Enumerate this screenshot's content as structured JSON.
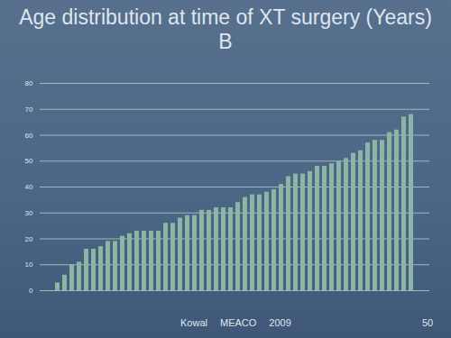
{
  "chart_data": {
    "type": "bar",
    "title": "Age distribution at time of XT surgery (Years)",
    "subtitle": "B",
    "categories": [
      null,
      null,
      null,
      null,
      null,
      null,
      null,
      null,
      null,
      null,
      null,
      null,
      null,
      null,
      null,
      null,
      null,
      null,
      null,
      null,
      null,
      null,
      null,
      null,
      null,
      null,
      null,
      null,
      null,
      null,
      null,
      null,
      null,
      null,
      null,
      null,
      null,
      null,
      null,
      null,
      null,
      null,
      null,
      null,
      null,
      null,
      null,
      null,
      null,
      null
    ],
    "values": [
      3,
      6,
      10,
      11,
      16,
      16,
      17,
      19,
      19,
      21,
      22,
      23,
      23,
      23,
      23,
      26,
      26,
      28,
      29,
      29,
      31,
      31,
      32,
      32,
      32,
      34,
      36,
      37,
      37,
      38,
      39,
      41,
      44,
      45,
      45,
      46,
      48,
      48,
      49,
      50,
      51,
      53,
      54,
      57,
      58,
      58,
      61,
      62,
      67,
      68
    ],
    "color": "#8db5a5",
    "ylim": [
      0,
      80
    ],
    "yticks": [
      0,
      10,
      20,
      30,
      40,
      50,
      60,
      70,
      80
    ],
    "grid": true,
    "tick_labels": "y",
    "footer": {
      "author": "Kowal",
      "event": "MEACO",
      "year": "2009",
      "page": "50"
    }
  }
}
